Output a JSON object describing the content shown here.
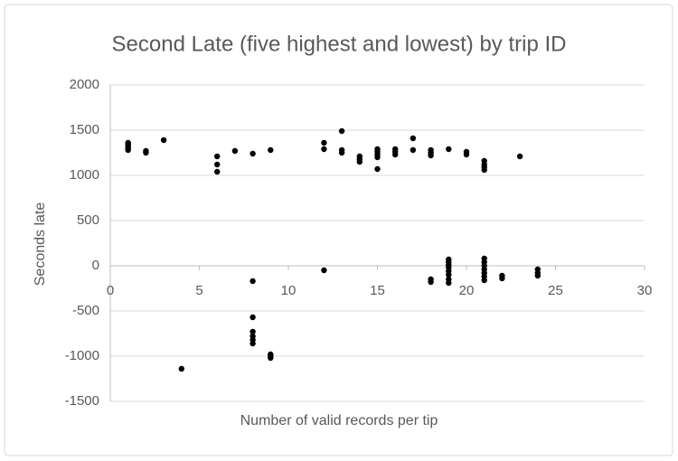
{
  "chart_data": {
    "type": "scatter",
    "title": "Second Late (five highest and lowest) by trip ID",
    "x_label": "Number of valid records per tip",
    "y_label": "Seconds late",
    "color": "#000000",
    "grid": true,
    "xlim": [
      0,
      30
    ],
    "xticks": [
      0,
      5,
      10,
      15,
      20,
      25,
      30
    ],
    "ylim": [
      -1500,
      2000
    ],
    "yticks": [
      -1500,
      -1000,
      -500,
      0,
      500,
      1000,
      1500,
      2000
    ],
    "x": [
      1,
      1,
      1,
      1,
      1,
      2,
      2,
      3,
      4,
      6,
      6,
      6,
      7,
      8,
      8,
      8,
      8,
      8,
      8,
      8,
      9,
      9,
      9,
      9,
      12,
      12,
      12,
      13,
      13,
      13,
      14,
      14,
      14,
      15,
      15,
      15,
      15,
      15,
      16,
      16,
      16,
      17,
      17,
      18,
      18,
      18,
      18,
      18,
      19,
      19,
      19,
      19,
      19,
      19,
      19,
      19,
      19,
      20,
      20,
      21,
      21,
      21,
      21,
      21,
      21,
      21,
      21,
      21,
      21,
      21,
      22,
      22,
      23,
      24,
      24,
      24
    ],
    "values": [
      1280,
      1300,
      1320,
      1340,
      1360,
      1250,
      1270,
      1390,
      -1140,
      1040,
      1120,
      1210,
      1270,
      1240,
      -170,
      -570,
      -730,
      -780,
      -820,
      -860,
      1280,
      -980,
      -1000,
      -1020,
      1290,
      1360,
      -50,
      1490,
      1250,
      1280,
      1150,
      1180,
      1210,
      1070,
      1200,
      1230,
      1260,
      1290,
      1230,
      1260,
      1290,
      1410,
      1280,
      1220,
      1250,
      1280,
      -150,
      -180,
      1290,
      70,
      40,
      10,
      -20,
      -60,
      -100,
      -150,
      -190,
      1230,
      1260,
      1060,
      1090,
      1120,
      1160,
      80,
      40,
      0,
      -40,
      -80,
      -120,
      -160,
      -110,
      -140,
      1210,
      -40,
      -80,
      -110
    ]
  }
}
